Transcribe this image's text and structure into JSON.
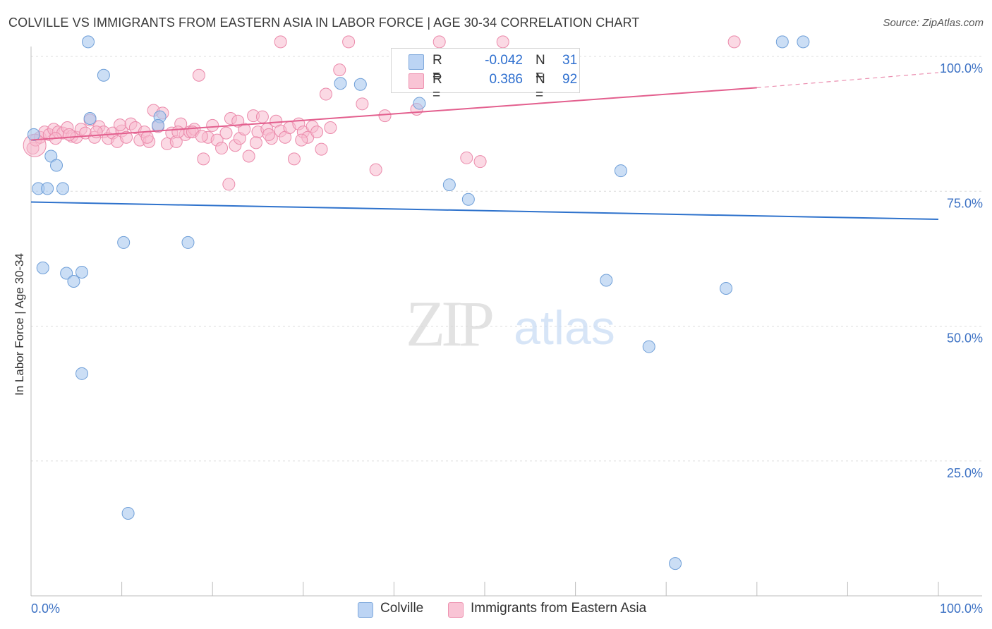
{
  "chart_data": {
    "type": "scatter",
    "title": "COLVILLE VS IMMIGRANTS FROM EASTERN ASIA IN LABOR FORCE | AGE 30-34 CORRELATION CHART",
    "source": "Source: ZipAtlas.com",
    "xlabel": "",
    "ylabel": "In Labor Force | Age 30-34",
    "xlim": [
      0,
      100
    ],
    "ylim": [
      0,
      100
    ],
    "x_tick_labels": [
      "0.0%",
      "100.0%"
    ],
    "y_tick_labels": [
      "25.0%",
      "50.0%",
      "75.0%",
      "100.0%"
    ],
    "y_ticks": [
      25,
      50,
      75,
      100
    ],
    "grid": true,
    "watermark": "ZIPatlas",
    "legend": {
      "position": "top-center",
      "rows": [
        {
          "r_label": "R =",
          "r_value": "-0.042",
          "n_label": "N =",
          "n_value": "31"
        },
        {
          "r_label": "R =",
          "r_value": "0.386",
          "n_label": "N =",
          "n_value": "92"
        }
      ]
    },
    "series": [
      {
        "name": "Colville",
        "color": "#a9c8ef",
        "stroke": "#6f9fd8",
        "line_color": "#2e72cc",
        "trend": {
          "x": [
            0,
            100
          ],
          "y": [
            73.0,
            69.8
          ]
        },
        "points": [
          [
            0.3,
            85.5
          ],
          [
            6.3,
            102.7
          ],
          [
            8.0,
            96.5
          ],
          [
            2.2,
            81.5
          ],
          [
            2.8,
            79.8
          ],
          [
            0.8,
            75.5
          ],
          [
            1.8,
            75.5
          ],
          [
            3.5,
            75.5
          ],
          [
            6.5,
            88.5
          ],
          [
            14.2,
            88.8
          ],
          [
            10.2,
            65.5
          ],
          [
            17.3,
            65.5
          ],
          [
            1.3,
            60.8
          ],
          [
            3.9,
            59.8
          ],
          [
            4.7,
            58.3
          ],
          [
            5.6,
            60.0
          ],
          [
            5.6,
            41.2
          ],
          [
            10.7,
            15.3
          ],
          [
            34.1,
            95.0
          ],
          [
            36.3,
            94.8
          ],
          [
            42.8,
            91.3
          ],
          [
            46.1,
            76.2
          ],
          [
            48.2,
            73.5
          ],
          [
            65.0,
            78.8
          ],
          [
            63.4,
            58.5
          ],
          [
            68.1,
            46.2
          ],
          [
            76.6,
            57.0
          ],
          [
            71.0,
            6.0
          ],
          [
            82.8,
            102.7
          ],
          [
            85.1,
            102.7
          ],
          [
            14.0,
            87.2
          ]
        ]
      },
      {
        "name": "Immigrants from Eastern Asia",
        "color": "#f7b9cd",
        "stroke": "#eb8aab",
        "line_color": "#e35f8e",
        "trend": {
          "x": [
            0,
            80
          ],
          "y": [
            84.5,
            94.2
          ]
        },
        "trend_dashed": {
          "x": [
            80,
            100
          ],
          "y": [
            94.2,
            97.0
          ]
        },
        "points": [
          [
            0.2,
            83.0
          ],
          [
            0.5,
            84.5
          ],
          [
            1.0,
            85.0
          ],
          [
            1.5,
            86.0
          ],
          [
            2.0,
            85.5
          ],
          [
            2.5,
            86.5
          ],
          [
            3.0,
            86.0
          ],
          [
            3.5,
            85.8
          ],
          [
            4.0,
            86.8
          ],
          [
            4.5,
            85.2
          ],
          [
            5.0,
            85.0
          ],
          [
            5.5,
            86.5
          ],
          [
            6.0,
            85.8
          ],
          [
            6.5,
            88.2
          ],
          [
            7.0,
            85.0
          ],
          [
            7.5,
            87.0
          ],
          [
            8.0,
            86.0
          ],
          [
            8.5,
            84.8
          ],
          [
            9.0,
            85.8
          ],
          [
            9.5,
            84.2
          ],
          [
            10.0,
            86.2
          ],
          [
            10.5,
            85.0
          ],
          [
            11.0,
            87.5
          ],
          [
            11.5,
            86.8
          ],
          [
            12.0,
            84.5
          ],
          [
            12.5,
            86.0
          ],
          [
            13.0,
            84.2
          ],
          [
            13.5,
            90.0
          ],
          [
            14.0,
            87.0
          ],
          [
            14.5,
            89.5
          ],
          [
            15.0,
            83.8
          ],
          [
            15.5,
            85.8
          ],
          [
            16.0,
            84.2
          ],
          [
            16.5,
            87.5
          ],
          [
            17.0,
            85.5
          ],
          [
            17.5,
            86.0
          ],
          [
            18.0,
            86.5
          ],
          [
            18.5,
            96.5
          ],
          [
            19.0,
            81.0
          ],
          [
            19.5,
            85.0
          ],
          [
            20.0,
            87.2
          ],
          [
            20.5,
            84.5
          ],
          [
            21.0,
            83.0
          ],
          [
            21.5,
            85.8
          ],
          [
            22.0,
            88.5
          ],
          [
            22.5,
            83.5
          ],
          [
            23.0,
            84.8
          ],
          [
            23.5,
            86.5
          ],
          [
            24.0,
            81.5
          ],
          [
            24.5,
            89.0
          ],
          [
            25.0,
            86.0
          ],
          [
            25.5,
            88.8
          ],
          [
            26.0,
            86.5
          ],
          [
            26.5,
            84.8
          ],
          [
            27.0,
            88.0
          ],
          [
            27.5,
            86.2
          ],
          [
            28.0,
            85.0
          ],
          [
            28.5,
            86.8
          ],
          [
            29.0,
            81.0
          ],
          [
            29.5,
            87.5
          ],
          [
            30.0,
            86.0
          ],
          [
            30.5,
            85.0
          ],
          [
            31.0,
            87.0
          ],
          [
            31.5,
            86.0
          ],
          [
            32.0,
            82.8
          ],
          [
            32.5,
            93.0
          ],
          [
            33.0,
            86.8
          ],
          [
            34.0,
            97.5
          ],
          [
            35.0,
            102.7
          ],
          [
            36.5,
            91.2
          ],
          [
            38.0,
            79.0
          ],
          [
            39.0,
            89.0
          ],
          [
            42.5,
            90.2
          ],
          [
            45.0,
            102.7
          ],
          [
            48.0,
            81.2
          ],
          [
            49.5,
            80.5
          ],
          [
            52.0,
            102.7
          ],
          [
            77.5,
            102.7
          ],
          [
            27.5,
            102.7
          ],
          [
            17.8,
            86.0
          ],
          [
            21.8,
            76.3
          ],
          [
            7.2,
            86.0
          ],
          [
            4.2,
            85.5
          ],
          [
            2.7,
            84.8
          ],
          [
            9.8,
            87.3
          ],
          [
            16.2,
            86.0
          ],
          [
            18.8,
            85.2
          ],
          [
            22.8,
            88.0
          ],
          [
            26.2,
            85.5
          ],
          [
            29.8,
            84.5
          ],
          [
            12.8,
            85.0
          ],
          [
            24.8,
            84.0
          ]
        ]
      }
    ]
  }
}
